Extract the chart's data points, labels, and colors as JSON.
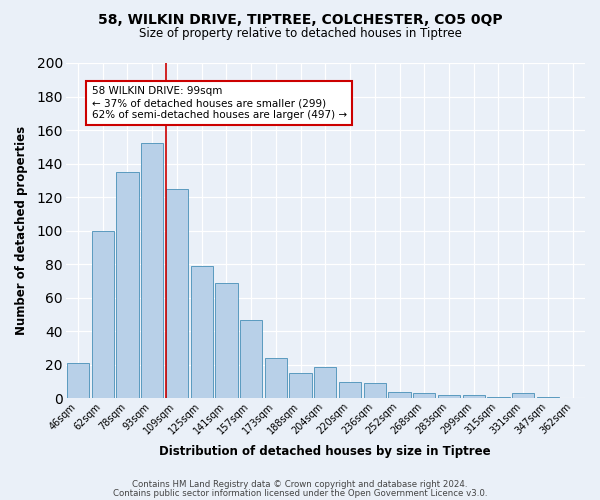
{
  "title": "58, WILKIN DRIVE, TIPTREE, COLCHESTER, CO5 0QP",
  "subtitle": "Size of property relative to detached houses in Tiptree",
  "xlabel": "Distribution of detached houses by size in Tiptree",
  "ylabel": "Number of detached properties",
  "categories": [
    "46sqm",
    "62sqm",
    "78sqm",
    "93sqm",
    "109sqm",
    "125sqm",
    "141sqm",
    "157sqm",
    "173sqm",
    "188sqm",
    "204sqm",
    "220sqm",
    "236sqm",
    "252sqm",
    "268sqm",
    "283sqm",
    "299sqm",
    "315sqm",
    "331sqm",
    "347sqm",
    "362sqm"
  ],
  "values": [
    21,
    100,
    135,
    152,
    125,
    79,
    69,
    47,
    24,
    15,
    19,
    10,
    9,
    4,
    3,
    2,
    2,
    1,
    3,
    1,
    0
  ],
  "bar_color": "#b8d0e8",
  "bar_edge_color": "#5a9abf",
  "background_color": "#eaf0f8",
  "grid_color": "#ffffff",
  "vline_color": "#cc0000",
  "vline_x": 3.55,
  "annotation_text1": "58 WILKIN DRIVE: 99sqm",
  "annotation_text2": "← 37% of detached houses are smaller (299)",
  "annotation_text3": "62% of semi-detached houses are larger (497) →",
  "annotation_box_color": "#ffffff",
  "annotation_box_edge": "#cc0000",
  "footer1": "Contains HM Land Registry data © Crown copyright and database right 2024.",
  "footer2": "Contains public sector information licensed under the Open Government Licence v3.0.",
  "ylim": [
    0,
    200
  ],
  "yticks": [
    0,
    20,
    40,
    60,
    80,
    100,
    120,
    140,
    160,
    180,
    200
  ]
}
